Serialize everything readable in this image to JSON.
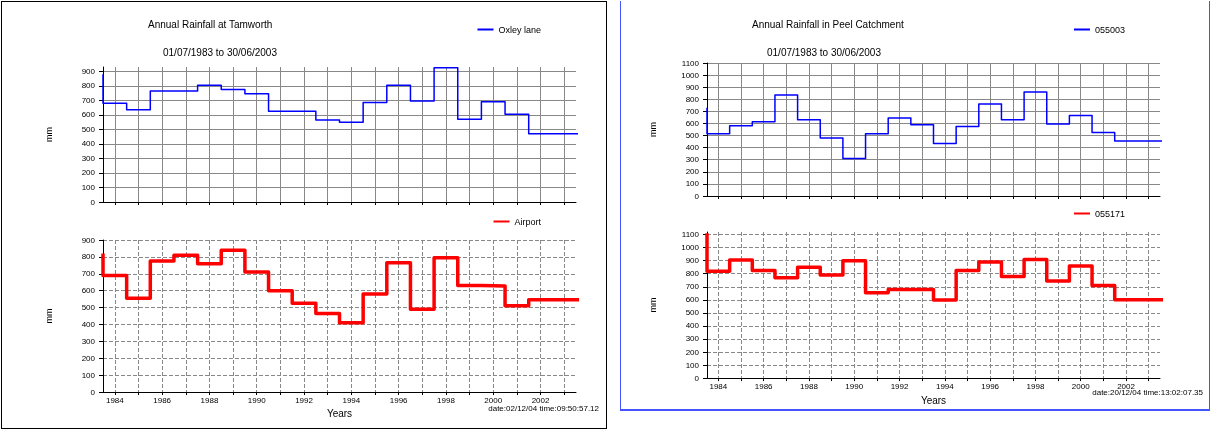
{
  "chart_data": [
    {
      "type": "step",
      "title": "Annual Rainfall at Tamworth",
      "subtitle": "01/07/1983 to 30/06/2003",
      "ylabel": "mm",
      "x": [
        1983.5,
        1984.5,
        1985.5,
        1986.5,
        1987.5,
        1988.5,
        1989.5,
        1990.5,
        1991.5,
        1992.5,
        1993.5,
        1994.5,
        1995.5,
        1996.5,
        1997.5,
        1998.5,
        1999.5,
        2000.5,
        2001.5,
        2002.5
      ],
      "series": [
        {
          "name": "Oxley lane",
          "color": "#0000ff",
          "values": [
            880,
            680,
            635,
            765,
            765,
            805,
            775,
            745,
            625,
            625,
            565,
            550,
            685,
            805,
            695,
            925,
            570,
            690,
            605,
            470
          ]
        }
      ],
      "xlim": [
        1983.5,
        2003.5
      ],
      "xticks": [
        1984,
        {
          "value": 1985,
          "label": null
        },
        1986,
        {
          "value": 1987,
          "label": null
        },
        1988,
        {
          "value": 1989,
          "label": null
        },
        1990,
        {
          "value": 1991,
          "label": null
        },
        1992,
        {
          "value": 1993,
          "label": null
        },
        1994,
        {
          "value": 1995,
          "label": null
        },
        1996,
        {
          "value": 1997,
          "label": null
        },
        1998,
        {
          "value": 1999,
          "label": null
        },
        2000,
        {
          "value": 2001,
          "label": null
        },
        2002,
        {
          "value": 2003,
          "label": null
        }
      ],
      "ylim": [
        0,
        930
      ],
      "yticks": [
        0,
        100,
        200,
        300,
        400,
        500,
        600,
        700,
        800,
        900
      ],
      "grid": true,
      "legend": "top right",
      "tick_labels": "y"
    },
    {
      "type": "step",
      "xlabel": "Years",
      "ylabel": "mm",
      "annotations": [
        "date:02/12/04 time:09:50:57.12"
      ],
      "x": [
        1983.5,
        1984.5,
        1985.5,
        1986.5,
        1987.5,
        1988.5,
        1989.5,
        1990.5,
        1991.5,
        1992.5,
        1993.5,
        1994.5,
        1995.5,
        1996.5,
        1997.5,
        1998.5,
        1999.5,
        2000.5,
        2001.5,
        2002.5
      ],
      "series": [
        {
          "name": "Airport",
          "color": "#ff0000",
          "values": [
            820,
            690,
            555,
            775,
            810,
            760,
            840,
            710,
            600,
            525,
            465,
            410,
            580,
            765,
            490,
            795,
            630,
            628,
            510,
            546
          ]
        }
      ],
      "xlim": [
        1983.5,
        2003.5
      ],
      "xticks": [
        1984,
        {
          "value": 1985,
          "label": null
        },
        1986,
        {
          "value": 1987,
          "label": null
        },
        1988,
        {
          "value": 1989,
          "label": null
        },
        1990,
        {
          "value": 1991,
          "label": null
        },
        1992,
        {
          "value": 1993,
          "label": null
        },
        1994,
        {
          "value": 1995,
          "label": null
        },
        1996,
        {
          "value": 1997,
          "label": null
        },
        1998,
        {
          "value": 1999,
          "label": null
        },
        2000,
        {
          "value": 2001,
          "label": null
        },
        2002,
        {
          "value": 2003,
          "label": null
        }
      ],
      "ylim": [
        0,
        900
      ],
      "yticks": [
        0,
        100,
        200,
        300,
        400,
        500,
        600,
        700,
        800,
        900
      ],
      "grid": true,
      "legend": "top right"
    },
    {
      "type": "step",
      "title": "Annual Rainfall in Peel Catchment",
      "subtitle": "01/07/1983 to 30/06/2003",
      "ylabel": "mm",
      "x": [
        1983.5,
        1984.5,
        1985.5,
        1986.5,
        1987.5,
        1988.5,
        1989.5,
        1990.5,
        1991.5,
        1992.5,
        1993.5,
        1994.5,
        1995.5,
        1996.5,
        1997.5,
        1998.5,
        1999.5,
        2000.5,
        2001.5,
        2002.5
      ],
      "series": [
        {
          "name": "055003",
          "color": "#0000ff",
          "values": [
            730,
            515,
            580,
            615,
            835,
            630,
            480,
            310,
            515,
            645,
            590,
            435,
            575,
            760,
            630,
            860,
            595,
            665,
            525,
            455
          ]
        }
      ],
      "xlim": [
        1983.5,
        2003.5
      ],
      "xticks": [
        1984,
        {
          "value": 1985,
          "label": null
        },
        1986,
        {
          "value": 1987,
          "label": null
        },
        1988,
        {
          "value": 1989,
          "label": null
        },
        1990,
        {
          "value": 1991,
          "label": null
        },
        1992,
        {
          "value": 1993,
          "label": null
        },
        1994,
        {
          "value": 1995,
          "label": null
        },
        1996,
        {
          "value": 1997,
          "label": null
        },
        1998,
        {
          "value": 1999,
          "label": null
        },
        2000,
        {
          "value": 2001,
          "label": null
        },
        2002,
        {
          "value": 2003,
          "label": null
        }
      ],
      "ylim": [
        0,
        1100
      ],
      "yticks": [
        0,
        100,
        200,
        300,
        400,
        500,
        600,
        700,
        800,
        900,
        1000,
        1100
      ],
      "grid": true,
      "legend": "top right",
      "tick_labels": "y"
    },
    {
      "type": "step",
      "xlabel": "Years",
      "ylabel": "mm",
      "annotations": [
        "date:20/12/04 time:13:02:07.35"
      ],
      "x": [
        1983.5,
        1984.5,
        1985.5,
        1986.5,
        1987.5,
        1988.5,
        1989.5,
        1990.5,
        1991.5,
        1992.5,
        1993.5,
        1994.5,
        1995.5,
        1996.5,
        1997.5,
        1998.5,
        1999.5,
        2000.5,
        2001.5,
        2002.5
      ],
      "series": [
        {
          "name": "055171",
          "color": "#ff0000",
          "values": [
            1110,
            820,
            905,
            825,
            770,
            850,
            790,
            900,
            655,
            680,
            680,
            598,
            825,
            890,
            778,
            910,
            745,
            860,
            710,
            600
          ]
        }
      ],
      "xlim": [
        1983.5,
        2003.5
      ],
      "xticks": [
        1984,
        {
          "value": 1985,
          "label": null
        },
        1986,
        {
          "value": 1987,
          "label": null
        },
        1988,
        {
          "value": 1989,
          "label": null
        },
        1990,
        {
          "value": 1991,
          "label": null
        },
        1992,
        {
          "value": 1993,
          "label": null
        },
        1994,
        {
          "value": 1995,
          "label": null
        },
        1996,
        {
          "value": 1997,
          "label": null
        },
        1998,
        {
          "value": 1999,
          "label": null
        },
        2000,
        {
          "value": 2001,
          "label": null
        },
        2002,
        {
          "value": 2003,
          "label": null
        }
      ],
      "ylim": [
        0,
        1120
      ],
      "yticks": [
        0,
        100,
        200,
        300,
        400,
        500,
        600,
        700,
        800,
        900,
        1000,
        1100
      ],
      "grid": true,
      "legend": "top right"
    }
  ]
}
